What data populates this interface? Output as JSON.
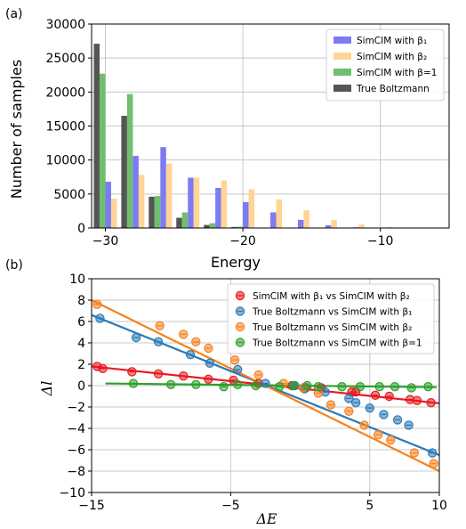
{
  "chart_data": [
    {
      "panel_label": "(a)",
      "type": "bar",
      "xlabel": "Energy",
      "ylabel": "Number of samples",
      "xlim": [
        -31,
        -5
      ],
      "ylim": [
        0,
        30000
      ],
      "xticks": [
        -30,
        -20,
        -10
      ],
      "xtick_labels": [
        "−30",
        "−20",
        "−10"
      ],
      "yticks": [
        0,
        5000,
        10000,
        15000,
        20000,
        25000,
        30000
      ],
      "ytick_labels": [
        "0",
        "5000",
        "10000",
        "15000",
        "20000",
        "25000",
        "30000"
      ],
      "grid": true,
      "legend_position": "top-right",
      "bar_width": 0.42,
      "categories": [
        -30,
        -28,
        -26,
        -24,
        -22,
        -20,
        -18,
        -16,
        -14,
        -12,
        -10,
        -8
      ],
      "series": [
        {
          "name": "True Boltzmann",
          "color": "#555555",
          "offset": -0.63,
          "values": [
            27100,
            16500,
            4600,
            1500,
            450,
            150,
            50,
            20,
            10,
            5,
            0,
            0
          ]
        },
        {
          "name": "SimCIM with β₁",
          "color": "#7b7bf2",
          "offset": 0.21,
          "values": [
            6800,
            10600,
            11900,
            7400,
            5900,
            3800,
            2300,
            1200,
            400,
            100,
            20,
            0
          ]
        },
        {
          "name": "SimCIM with β₂",
          "color": "#ffd494",
          "offset": 0.63,
          "values": [
            4300,
            7800,
            9500,
            7400,
            7000,
            5700,
            4200,
            2600,
            1200,
            500,
            150,
            40
          ]
        },
        {
          "name": "SimCIM with β=1",
          "color": "#6fbf6f",
          "offset": -0.21,
          "values": [
            22700,
            19700,
            4700,
            2300,
            700,
            200,
            60,
            20,
            5,
            0,
            0,
            0
          ]
        }
      ],
      "legend_order": [
        "SimCIM with β₁",
        "SimCIM with β₂",
        "SimCIM with β=1",
        "True Boltzmann"
      ]
    },
    {
      "panel_label": "(b)",
      "type": "scatter",
      "xlabel": "ΔE",
      "ylabel": "Δl",
      "xlim": [
        -15,
        10
      ],
      "ylim": [
        -10,
        10
      ],
      "xticks": [
        -15,
        -5,
        5,
        10
      ],
      "xtick_labels": [
        "−15",
        "−5",
        "5",
        "10"
      ],
      "yticks": [
        -10,
        -8,
        -6,
        -4,
        -2,
        0,
        2,
        4,
        6,
        8,
        10
      ],
      "ytick_labels": [
        "−10",
        "−8",
        "−6",
        "−4",
        "−2",
        "0",
        "2",
        "4",
        "6",
        "8",
        "10"
      ],
      "grid": true,
      "legend_position": "top-right",
      "series": [
        {
          "name": "SimCIM with β₁ vs SimCIM with β₂",
          "color": "#e8191e",
          "x": [
            -14.6,
            -14.2,
            -12.1,
            -10.2,
            -8.4,
            -6.6,
            -4.8,
            -3.0,
            -0.6,
            0.4,
            1.5,
            3.7,
            4.0,
            5.4,
            6.4,
            7.9,
            8.4,
            9.4
          ],
          "y": [
            1.8,
            1.6,
            1.3,
            1.1,
            0.9,
            0.6,
            0.5,
            0.2,
            0.0,
            -0.2,
            -0.2,
            -0.6,
            -0.6,
            -0.9,
            -1.0,
            -1.3,
            -1.4,
            -1.6
          ],
          "fit": [
            -15,
            1.8,
            10,
            -1.65
          ]
        },
        {
          "name": "True Boltzmann vs SimCIM with β₁",
          "color": "#2a7ab7",
          "x": [
            -14.4,
            -11.8,
            -10.2,
            -7.9,
            -6.5,
            -4.5,
            -2.5,
            -0.4,
            0.3,
            1.8,
            3.5,
            4.0,
            5.0,
            6.0,
            7.0,
            7.8,
            9.5
          ],
          "y": [
            6.3,
            4.5,
            4.1,
            2.9,
            2.1,
            1.5,
            0.2,
            0.0,
            -0.3,
            -0.6,
            -1.2,
            -1.6,
            -2.1,
            -2.7,
            -3.2,
            -3.7,
            -6.3
          ],
          "fit": [
            -15,
            6.6,
            10,
            -6.5
          ]
        },
        {
          "name": "True Boltzmann vs SimCIM with β₂",
          "color": "#f5821f",
          "x": [
            -14.6,
            -10.1,
            -8.4,
            -7.5,
            -6.6,
            -4.7,
            -3.0,
            -1.2,
            0.2,
            1.3,
            2.2,
            3.5,
            4.6,
            5.6,
            6.5,
            8.2,
            9.6
          ],
          "y": [
            7.6,
            5.6,
            4.8,
            4.1,
            3.5,
            2.4,
            1.0,
            0.2,
            -0.2,
            -0.7,
            -1.8,
            -2.4,
            -3.7,
            -4.6,
            -5.1,
            -6.3,
            -7.3
          ],
          "fit": [
            -15,
            8.0,
            10,
            -8.0
          ]
        },
        {
          "name": "True Boltzmann vs SimCIM with β=1",
          "color": "#2ca02c",
          "x": [
            -12.0,
            -9.3,
            -7.5,
            -5.5,
            -4.5,
            -3.2,
            -1.5,
            -0.5,
            0.5,
            1.3,
            3.0,
            4.3,
            5.7,
            6.8,
            8.0,
            9.2
          ],
          "y": [
            0.2,
            0.1,
            0.1,
            -0.1,
            0.1,
            0.0,
            -0.1,
            0.0,
            0.0,
            -0.1,
            -0.1,
            -0.1,
            -0.1,
            -0.1,
            -0.2,
            -0.1
          ],
          "fit": [
            -14,
            0.2,
            9.8,
            -0.15
          ]
        }
      ]
    }
  ]
}
